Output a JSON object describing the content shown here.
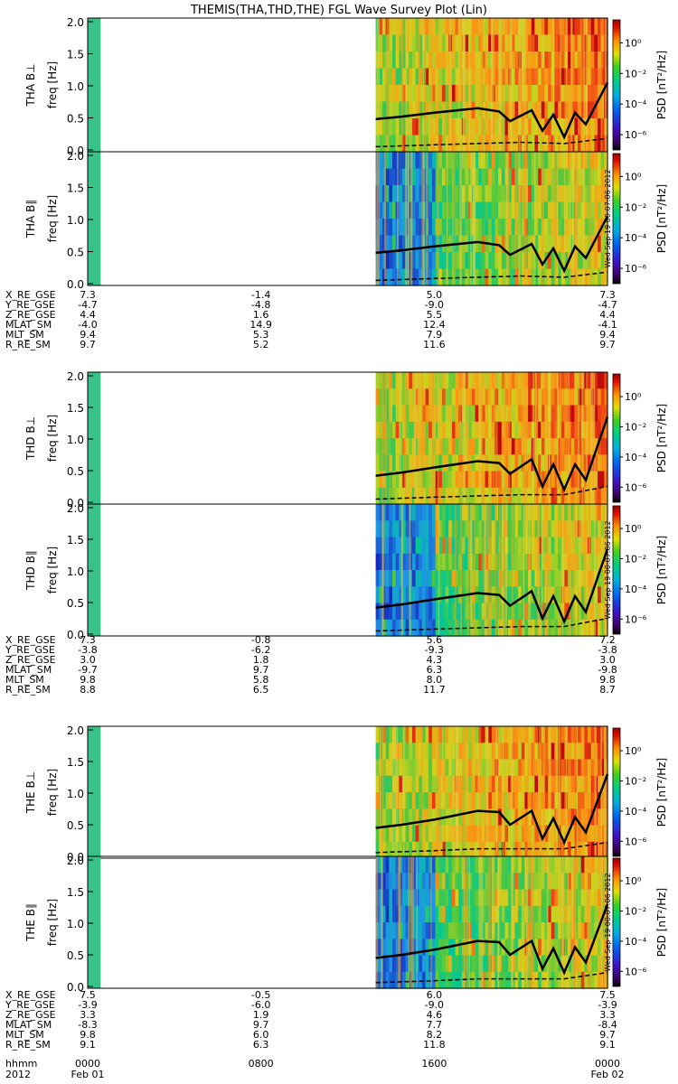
{
  "title": "THEMIS(THA,THD,THE) FGL Wave Survey Plot (Lin)",
  "stamp": "Wed Sep 19 00:07:06 2012",
  "colors": {
    "background": "#ffffff",
    "spectrogram_low": "#2a8fd6",
    "spectrogram_mid": "#4cc35a",
    "spectrogram_high": "#d9c320",
    "spectrogram_peak": "#e0381e",
    "line": "#000000"
  },
  "chart_data": {
    "type": "heatmap",
    "xaxis": {
      "rows": [
        "hhmm",
        "2012"
      ],
      "ticks": [
        {
          "hours": 0,
          "hhmm": "0000",
          "date": "Feb 01"
        },
        {
          "hours": 8,
          "hhmm": "0800",
          "date": ""
        },
        {
          "hours": 16,
          "hhmm": "1600",
          "date": ""
        },
        {
          "hours": 24,
          "hhmm": "0000",
          "date": "Feb 02"
        }
      ],
      "range_hours": [
        0,
        24
      ],
      "data_gap_hours": [
        0.6,
        13.3
      ]
    },
    "yaxis": {
      "label": "freq [Hz]",
      "ticks": [
        "0.0",
        "0.5",
        "1.0",
        "1.5",
        "2.0"
      ],
      "range": [
        0,
        2
      ]
    },
    "colorbar": {
      "label": "PSD [nT²/Hz]",
      "ticks": [
        "10⁰",
        "10⁻²",
        "10⁻⁴",
        "10⁻⁶"
      ],
      "exponents": [
        0,
        -2,
        -4,
        -6
      ],
      "range_exp": [
        -7,
        1.5
      ]
    },
    "probes": [
      {
        "id": "THA",
        "panels": [
          {
            "label": "THA B⊥"
          },
          {
            "label": "THA B∥"
          }
        ],
        "overlay_solid_hz": [
          [
            13.3,
            0.48
          ],
          [
            14.5,
            0.52
          ],
          [
            16,
            0.58
          ],
          [
            18,
            0.65
          ],
          [
            19,
            0.6
          ],
          [
            19.5,
            0.45
          ],
          [
            20.5,
            0.62
          ],
          [
            21,
            0.3
          ],
          [
            21.5,
            0.55
          ],
          [
            22,
            0.2
          ],
          [
            22.5,
            0.58
          ],
          [
            23,
            0.4
          ],
          [
            24,
            1.05
          ]
        ],
        "overlay_dashed_hz": [
          [
            13.3,
            0.05
          ],
          [
            16,
            0.08
          ],
          [
            18,
            0.1
          ],
          [
            20,
            0.12
          ],
          [
            22,
            0.1
          ],
          [
            24,
            0.18
          ]
        ],
        "ephemeris": [
          {
            "name": "X_RE_GSE",
            "values": [
              "7.3",
              "-1.4",
              "5.0",
              "7.3"
            ]
          },
          {
            "name": "Y_RE_GSE",
            "values": [
              "-4.7",
              "-4.8",
              "-9.0",
              "-4.7"
            ]
          },
          {
            "name": "Z_RE_GSE",
            "values": [
              "4.4",
              "1.6",
              "5.5",
              "4.4"
            ]
          },
          {
            "name": "MLAT_SM",
            "values": [
              "-4.0",
              "14.9",
              "12.4",
              "-4.1"
            ]
          },
          {
            "name": "MLT_SM",
            "values": [
              "9.4",
              "5.3",
              "7.9",
              "9.4"
            ]
          },
          {
            "name": "R_RE_SM",
            "values": [
              "9.7",
              "5.2",
              "11.6",
              "9.7"
            ]
          }
        ]
      },
      {
        "id": "THD",
        "panels": [
          {
            "label": "THD B⊥"
          },
          {
            "label": "THD B∥"
          }
        ],
        "overlay_solid_hz": [
          [
            13.3,
            0.42
          ],
          [
            14.5,
            0.47
          ],
          [
            16,
            0.55
          ],
          [
            18,
            0.65
          ],
          [
            19,
            0.62
          ],
          [
            19.5,
            0.45
          ],
          [
            20.5,
            0.68
          ],
          [
            21,
            0.25
          ],
          [
            21.5,
            0.6
          ],
          [
            22,
            0.2
          ],
          [
            22.5,
            0.6
          ],
          [
            23,
            0.35
          ],
          [
            24,
            1.35
          ]
        ],
        "overlay_dashed_hz": [
          [
            13.3,
            0.05
          ],
          [
            16,
            0.08
          ],
          [
            18,
            0.1
          ],
          [
            20,
            0.12
          ],
          [
            22,
            0.12
          ],
          [
            24,
            0.25
          ]
        ],
        "ephemeris": [
          {
            "name": "X_RE_GSE",
            "values": [
              "7.3",
              "-0.8",
              "5.6",
              "7.2"
            ]
          },
          {
            "name": "Y_RE_GSE",
            "values": [
              "-3.8",
              "-6.2",
              "-9.3",
              "-3.8"
            ]
          },
          {
            "name": "Z_RE_GSE",
            "values": [
              "3.0",
              "1.8",
              "4.3",
              "3.0"
            ]
          },
          {
            "name": "MLAT_SM",
            "values": [
              "-9.7",
              "9.7",
              "6.3",
              "-9.8"
            ]
          },
          {
            "name": "MLT_SM",
            "values": [
              "9.8",
              "5.8",
              "8.0",
              "9.8"
            ]
          },
          {
            "name": "R_RE_SM",
            "values": [
              "8.8",
              "6.5",
              "11.7",
              "8.7"
            ]
          }
        ]
      },
      {
        "id": "THE",
        "panels": [
          {
            "label": "THE B⊥"
          },
          {
            "label": "THE B∥"
          }
        ],
        "overlay_solid_hz": [
          [
            13.3,
            0.45
          ],
          [
            14.5,
            0.5
          ],
          [
            16,
            0.58
          ],
          [
            18,
            0.72
          ],
          [
            19,
            0.7
          ],
          [
            19.5,
            0.5
          ],
          [
            20.5,
            0.72
          ],
          [
            21,
            0.28
          ],
          [
            21.5,
            0.6
          ],
          [
            22,
            0.22
          ],
          [
            22.5,
            0.62
          ],
          [
            23,
            0.38
          ],
          [
            24,
            1.3
          ]
        ],
        "overlay_dashed_hz": [
          [
            13.3,
            0.06
          ],
          [
            16,
            0.09
          ],
          [
            18,
            0.12
          ],
          [
            20,
            0.12
          ],
          [
            22,
            0.12
          ],
          [
            24,
            0.22
          ]
        ],
        "ephemeris": [
          {
            "name": "X_RE_GSE",
            "values": [
              "7.5",
              "-0.5",
              "6.0",
              "7.5"
            ]
          },
          {
            "name": "Y_RE_GSE",
            "values": [
              "-3.9",
              "-6.0",
              "-9.0",
              "-3.9"
            ]
          },
          {
            "name": "Z_RE_GSE",
            "values": [
              "3.3",
              "1.9",
              "4.6",
              "3.3"
            ]
          },
          {
            "name": "MLAT_SM",
            "values": [
              "-8.3",
              "9.7",
              "7.7",
              "-8.4"
            ]
          },
          {
            "name": "MLT_SM",
            "values": [
              "9.8",
              "6.0",
              "8.2",
              "9.7"
            ]
          },
          {
            "name": "R_RE_SM",
            "values": [
              "9.1",
              "6.3",
              "11.8",
              "9.1"
            ]
          }
        ]
      }
    ]
  }
}
